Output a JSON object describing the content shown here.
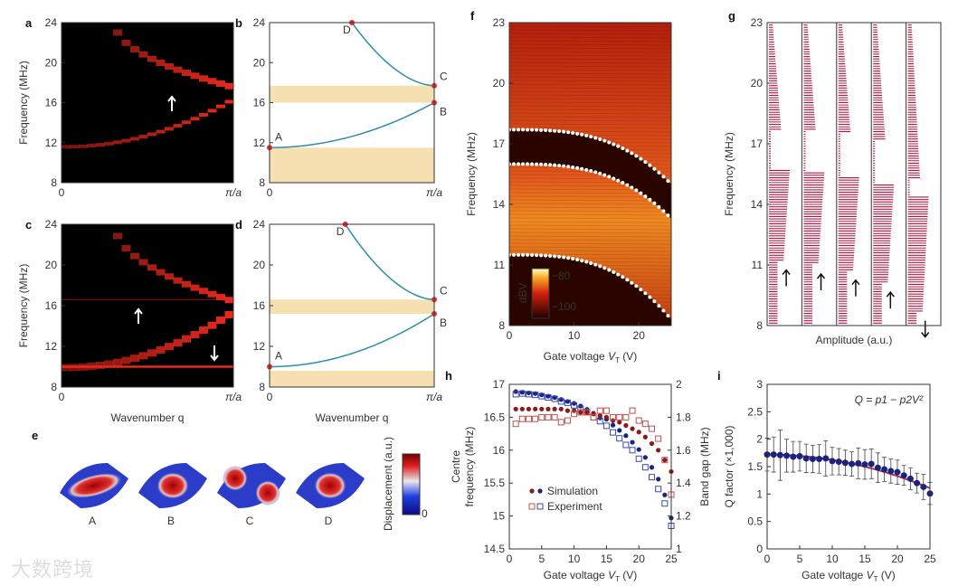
{
  "colors": {
    "axis": "#333333",
    "curve": "#2a8fa8",
    "band": "#f6dfb0",
    "point": "#e03030",
    "heat": "#e8281a",
    "sim_blue": "#1a237e",
    "sim_red": "#8b1a1a",
    "exp_blue": "#3949ab",
    "exp_red": "#c0504d",
    "trace": "#b01840"
  },
  "watermark": "大数跨境",
  "chart_data": [
    {
      "id": "a",
      "panel_label": "a",
      "type": "heatmap",
      "ylabel": "Frequency (MHz)",
      "xticks": [
        "0",
        "π/a"
      ],
      "yticks": [
        "24",
        "20",
        "16",
        "12",
        "8"
      ],
      "ylim": [
        8,
        24
      ],
      "lower_band": {
        "from": 11.5,
        "to": 16
      },
      "upper_band": {
        "from": 24,
        "to": 17.7
      },
      "annotation": "arrow-up"
    },
    {
      "id": "b",
      "panel_label": "b",
      "type": "line",
      "xticks": [
        "0",
        "π/a"
      ],
      "yticks": [
        "24",
        "20",
        "16",
        "12",
        "8"
      ],
      "ylim": [
        8,
        24
      ],
      "points": [
        {
          "label": "A",
          "x": 0,
          "y": 11.5
        },
        {
          "label": "B",
          "x": 1,
          "y": 16
        },
        {
          "label": "C",
          "x": 1,
          "y": 17.7
        },
        {
          "label": "D",
          "x": 0.5,
          "y": 24
        }
      ],
      "gaps": [
        [
          8,
          11.5
        ],
        [
          16,
          17.7
        ]
      ]
    },
    {
      "id": "c",
      "panel_label": "c",
      "type": "heatmap",
      "ylabel": "Frequency (MHz)",
      "xlabel": "Wavenumber q",
      "xticks": [
        "0",
        "π/a"
      ],
      "yticks": [
        "24",
        "20",
        "16",
        "12",
        "8"
      ],
      "ylim": [
        8,
        24
      ],
      "lower_band": {
        "from": 10,
        "to": 15.2
      },
      "upper_band": {
        "from": 24,
        "to": 16.6
      },
      "flat_lines": [
        16.6,
        10
      ],
      "annotation": "arrow-up, arrow-down"
    },
    {
      "id": "d",
      "panel_label": "d",
      "type": "line",
      "xlabel": "Wavenumber q",
      "xticks": [
        "0",
        "π/a"
      ],
      "yticks": [
        "24",
        "20",
        "16",
        "12",
        "8"
      ],
      "ylim": [
        8,
        24
      ],
      "points": [
        {
          "label": "A",
          "x": 0,
          "y": 10
        },
        {
          "label": "B",
          "x": 1,
          "y": 15.2
        },
        {
          "label": "C",
          "x": 1,
          "y": 16.6
        },
        {
          "label": "D",
          "x": 0.46,
          "y": 24
        }
      ],
      "gaps": [
        [
          8,
          9.6
        ],
        [
          15.2,
          16.6
        ]
      ]
    },
    {
      "id": "e",
      "panel_label": "e",
      "type": "other",
      "modes": [
        "A",
        "B",
        "C",
        "D"
      ],
      "colorbar_label": "Displacement (a.u.)",
      "colorbar_min": "0"
    },
    {
      "id": "f",
      "panel_label": "f",
      "type": "heatmap",
      "ylabel": "Frequency (MHz)",
      "xlabel": "Gate voltage V_T (V)",
      "xlabel_main": "Gate voltage ",
      "xlabel_var": "V",
      "xlabel_sub": "T",
      "xlabel_unit": " (V)",
      "xticks": [
        "0",
        "10",
        "20"
      ],
      "xlim": [
        0,
        25
      ],
      "yticks": [
        "23",
        "20",
        "17",
        "14",
        "11",
        "8"
      ],
      "ylim": [
        8,
        23
      ],
      "colorbar": {
        "label": "dBV",
        "ticks": [
          "−80",
          "−100"
        ]
      },
      "dotted_edges": [
        {
          "start": 17.7,
          "end": 15.0
        },
        {
          "start": 16.0,
          "end": 13.3
        },
        {
          "start": 11.5,
          "end": 8.3
        }
      ]
    },
    {
      "id": "g",
      "panel_label": "g",
      "type": "line",
      "ylabel": "Frequency (MHz)",
      "xlabel": "Amplitude (a.u.)",
      "yticks": [
        "23",
        "20",
        "17",
        "14",
        "11",
        "8"
      ],
      "ylim": [
        8,
        23
      ],
      "columns": [
        {
          "gap": [
            11.2,
            15.7
          ],
          "upper": [
            17.7,
            23
          ]
        },
        {
          "gap": [
            11.0,
            15.6
          ],
          "upper": [
            17.6,
            23
          ]
        },
        {
          "gap": [
            10.7,
            15.4
          ],
          "upper": [
            17.5,
            23
          ]
        },
        {
          "gap": [
            10.1,
            15.0
          ],
          "upper": [
            17.2,
            23
          ]
        },
        {
          "gap": [
            8.6,
            14.4
          ],
          "upper": [
            15.3,
            23
          ]
        }
      ],
      "arrows": [
        "up",
        "up",
        "up",
        "up",
        "down"
      ]
    },
    {
      "id": "h",
      "panel_label": "h",
      "type": "scatter",
      "xlabel": "Gate voltage V_T (V)",
      "ylabel": "Centre frequency (MHz)",
      "ylabel_line1": "Centre",
      "ylabel_line2": "frequency (MHz)",
      "y2label": "Band gap (MHz)",
      "xlim": [
        0,
        25
      ],
      "ylim": [
        14.5,
        17
      ],
      "y2lim": [
        1,
        2
      ],
      "xticks": [
        "0",
        "5",
        "10",
        "15",
        "20",
        "25"
      ],
      "yticks": [
        "17",
        "16.5",
        "16",
        "15.5",
        "15",
        "14.5"
      ],
      "y2ticks": [
        "2",
        "1.8",
        "1.6",
        "1.4",
        "1.2",
        "1"
      ],
      "legend": [
        "Simulation",
        "Experiment"
      ],
      "legend_position": "center-left",
      "x": [
        1,
        2,
        3,
        4,
        5,
        6,
        7,
        8,
        9,
        10,
        11,
        12,
        13,
        14,
        15,
        16,
        17,
        18,
        19,
        20,
        21,
        22,
        23,
        24,
        25
      ],
      "series": [
        {
          "name": "Simulation centre frequency",
          "axis": "left",
          "marker": "dot",
          "values": [
            16.89,
            16.88,
            16.87,
            16.86,
            16.84,
            16.82,
            16.8,
            16.77,
            16.74,
            16.71,
            16.67,
            16.62,
            16.56,
            16.49,
            16.47,
            16.38,
            16.3,
            16.22,
            16.12,
            16.01,
            15.89,
            15.74,
            15.56,
            15.32,
            14.97
          ]
        },
        {
          "name": "Experiment centre frequency",
          "axis": "left",
          "marker": "square",
          "values": [
            16.85,
            16.86,
            16.85,
            16.84,
            16.82,
            16.8,
            16.78,
            16.74,
            16.72,
            16.68,
            16.63,
            16.58,
            16.5,
            16.44,
            16.37,
            16.27,
            16.18,
            16.08,
            16.0,
            15.87,
            15.74,
            15.59,
            15.41,
            15.19,
            14.85
          ]
        },
        {
          "name": "Simulation band gap",
          "axis": "right",
          "marker": "dot",
          "values": [
            1.85,
            1.85,
            1.85,
            1.85,
            1.85,
            1.85,
            1.85,
            1.85,
            1.84,
            1.84,
            1.83,
            1.83,
            1.82,
            1.81,
            1.8,
            1.78,
            1.77,
            1.75,
            1.73,
            1.71,
            1.68,
            1.64,
            1.6,
            1.54,
            1.47
          ]
        },
        {
          "name": "Experiment band gap",
          "axis": "right",
          "marker": "square",
          "values": [
            1.76,
            1.79,
            1.79,
            1.79,
            1.8,
            1.8,
            1.8,
            1.77,
            1.78,
            1.82,
            1.83,
            1.83,
            1.8,
            1.84,
            1.84,
            1.8,
            1.8,
            1.8,
            1.84,
            1.78,
            1.76,
            1.73,
            1.67,
            1.54,
            1.33
          ]
        }
      ]
    },
    {
      "id": "i",
      "panel_label": "i",
      "type": "scatter",
      "xlabel": "Gate voltage V_T (V)",
      "ylabel": "Q factor (×1,000)",
      "xlim": [
        0,
        25
      ],
      "ylim": [
        0,
        3
      ],
      "xticks": [
        "0",
        "5",
        "10",
        "15",
        "20",
        "25"
      ],
      "yticks": [
        "3",
        "2.5",
        "2",
        "1.5",
        "1",
        "0.5",
        "0"
      ],
      "annotation": "Q = p1 − p2V²",
      "x": [
        0,
        1,
        2,
        3,
        4,
        5,
        6,
        7,
        8,
        9,
        10,
        11,
        12,
        13,
        14,
        15,
        16,
        17,
        18,
        19,
        20,
        21,
        22,
        23,
        24,
        25
      ],
      "values": [
        1.72,
        1.72,
        1.71,
        1.7,
        1.68,
        1.69,
        1.65,
        1.64,
        1.64,
        1.65,
        1.6,
        1.59,
        1.57,
        1.55,
        1.56,
        1.54,
        1.55,
        1.48,
        1.45,
        1.42,
        1.4,
        1.34,
        1.28,
        1.2,
        1.13,
        1.01
      ],
      "errors": [
        0.3,
        0.32,
        0.46,
        0.3,
        0.28,
        0.27,
        0.26,
        0.25,
        0.26,
        0.32,
        0.25,
        0.24,
        0.23,
        0.22,
        0.28,
        0.27,
        0.27,
        0.27,
        0.22,
        0.22,
        0.22,
        0.18,
        0.2,
        0.18,
        0.23,
        0.2
      ],
      "fit": {
        "p1": 1.72,
        "p2": 0.00098
      }
    }
  ]
}
